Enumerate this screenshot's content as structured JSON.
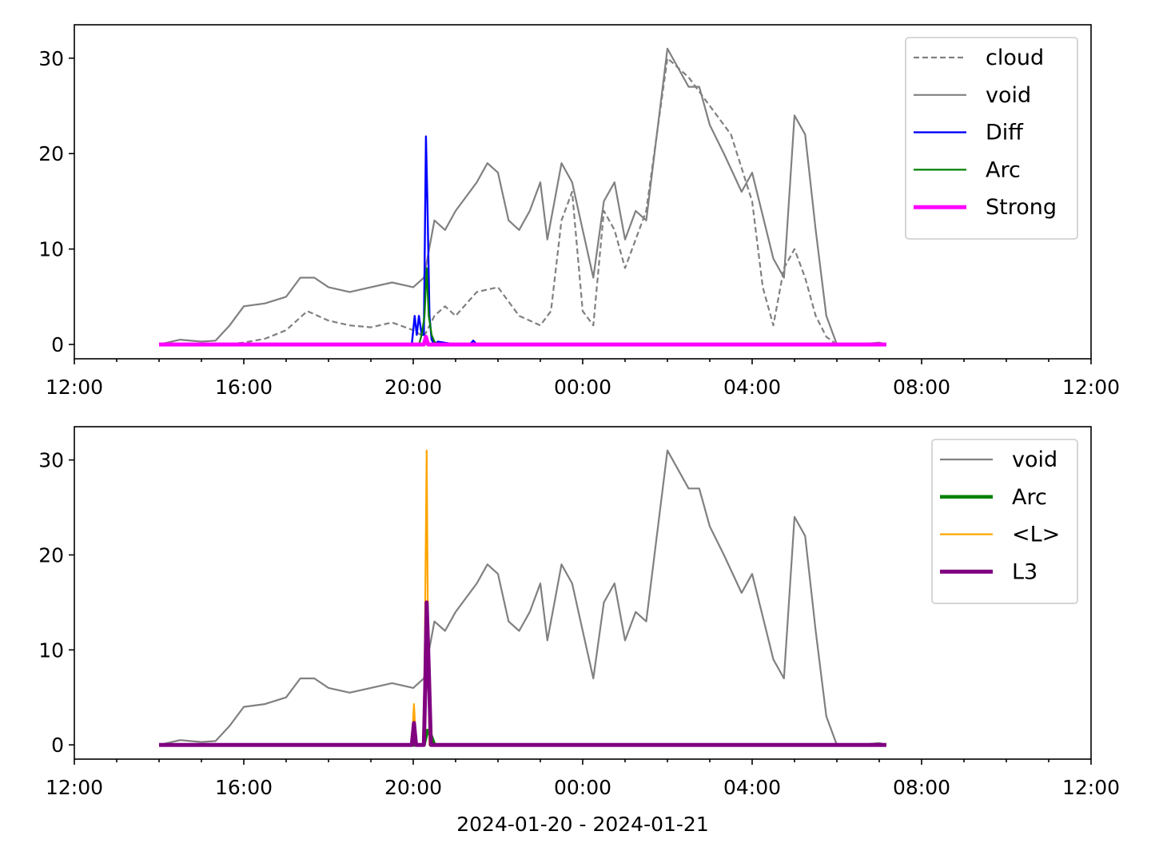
{
  "chart_data": [
    {
      "type": "line",
      "xlim": [
        "2024-01-20 12:00",
        "2024-01-21 12:00"
      ],
      "ylim": [
        -1.5,
        33.5
      ],
      "yticks": [
        0,
        10,
        20,
        30
      ],
      "xticks": [
        "12:00",
        "16:00",
        "20:00",
        "00:00",
        "04:00",
        "08:00",
        "12:00"
      ],
      "xlabel": "",
      "legend": "top-right",
      "series": [
        {
          "name": "cloud",
          "color": "#808080",
          "style": "dashed",
          "width": 2.2,
          "x": [
            "14:00",
            "15:00",
            "15:30",
            "16:00",
            "16:30",
            "17:00",
            "17:30",
            "18:00",
            "18:30",
            "19:00",
            "19:30",
            "20:00",
            "20:15",
            "20:30",
            "20:45",
            "21:00",
            "21:30",
            "22:00",
            "22:30",
            "23:00",
            "23:15",
            "23:30",
            "23:45",
            "00:00",
            "00:15",
            "00:30",
            "00:45",
            "01:00",
            "01:30",
            "02:00",
            "02:30",
            "03:00",
            "03:30",
            "04:00",
            "04:15",
            "04:30",
            "04:45",
            "05:00",
            "05:15",
            "05:30",
            "05:45",
            "06:00",
            "06:30",
            "07:00",
            "07:10"
          ],
          "y": [
            0,
            0,
            0,
            0.2,
            0.6,
            1.5,
            3.5,
            2.5,
            2,
            1.8,
            2.3,
            1.5,
            0.8,
            3.0,
            4.0,
            3.0,
            5.5,
            6.0,
            3.0,
            2.0,
            3.5,
            13,
            16,
            3.5,
            2.0,
            14,
            12,
            8,
            14,
            30,
            28,
            25,
            22,
            15,
            6,
            2,
            8,
            10,
            7,
            3,
            0.8,
            0,
            0,
            0,
            0
          ]
        },
        {
          "name": "void",
          "color": "#808080",
          "style": "solid",
          "width": 2.2,
          "x": [
            "14:00",
            "14:30",
            "15:00",
            "15:20",
            "15:40",
            "16:00",
            "16:30",
            "17:00",
            "17:20",
            "17:40",
            "18:00",
            "18:30",
            "19:00",
            "19:30",
            "20:00",
            "20:15",
            "20:30",
            "20:45",
            "21:00",
            "21:30",
            "21:45",
            "22:00",
            "22:15",
            "22:30",
            "22:45",
            "23:00",
            "23:10",
            "23:20",
            "23:30",
            "23:45",
            "00:00",
            "00:15",
            "00:30",
            "00:45",
            "01:00",
            "01:15",
            "01:30",
            "02:00",
            "02:30",
            "02:45",
            "03:00",
            "03:20",
            "03:45",
            "04:00",
            "04:20",
            "04:30",
            "04:45",
            "05:00",
            "05:15",
            "05:30",
            "05:45",
            "06:00",
            "06:30",
            "07:00",
            "07:10"
          ],
          "y": [
            0,
            0.5,
            0.3,
            0.4,
            2,
            4,
            4.3,
            5,
            7,
            7,
            6,
            5.5,
            6,
            6.5,
            6,
            7,
            13,
            12,
            14,
            17,
            19,
            18,
            13,
            12,
            14,
            17,
            11,
            15,
            19,
            17,
            12,
            7,
            15,
            17,
            11,
            14,
            13,
            31,
            27,
            27,
            23,
            20,
            16,
            18,
            12,
            9,
            7,
            24,
            22,
            12,
            3,
            0,
            0,
            0.2,
            0
          ]
        },
        {
          "name": "Diff",
          "color": "#0000ff",
          "style": "solid",
          "width": 2.4,
          "x": [
            "14:00",
            "19:58",
            "20:02",
            "20:05",
            "20:08",
            "20:12",
            "20:15",
            "20:18",
            "20:20",
            "20:23",
            "20:26",
            "20:30",
            "20:35",
            "21:00",
            "21:20",
            "21:25",
            "21:30",
            "07:10"
          ],
          "y": [
            0,
            0,
            3,
            1,
            3,
            1,
            1,
            21.8,
            15,
            3,
            0.5,
            0,
            0.3,
            0,
            0,
            0.4,
            0,
            0
          ]
        },
        {
          "name": "Arc",
          "color": "#008000",
          "style": "solid",
          "width": 2.2,
          "x": [
            "14:00",
            "20:00",
            "20:08",
            "20:12",
            "20:16",
            "20:19",
            "20:22",
            "20:26",
            "20:30",
            "20:35",
            "07:10"
          ],
          "y": [
            0,
            0,
            0,
            1,
            3,
            8,
            3,
            1,
            0.3,
            0,
            0
          ]
        },
        {
          "name": "Strong",
          "color": "#ff00ff",
          "style": "solid",
          "width": 5,
          "x": [
            "14:00",
            "20:15",
            "20:18",
            "20:21",
            "07:10"
          ],
          "y": [
            0,
            0,
            0.8,
            0,
            0
          ]
        }
      ]
    },
    {
      "type": "line",
      "xlim": [
        "2024-01-20 12:00",
        "2024-01-21 12:00"
      ],
      "ylim": [
        -1.5,
        33.5
      ],
      "yticks": [
        0,
        10,
        20,
        30
      ],
      "xticks": [
        "12:00",
        "16:00",
        "20:00",
        "00:00",
        "04:00",
        "08:00",
        "12:00"
      ],
      "xlabel": "2024-01-20 - 2024-01-21",
      "legend": "top-right",
      "series": [
        {
          "name": "void",
          "color": "#808080",
          "style": "solid",
          "width": 2.2,
          "x": [
            "14:00",
            "14:30",
            "15:00",
            "15:20",
            "15:40",
            "16:00",
            "16:30",
            "17:00",
            "17:20",
            "17:40",
            "18:00",
            "18:30",
            "19:00",
            "19:30",
            "20:00",
            "20:15",
            "20:30",
            "20:45",
            "21:00",
            "21:30",
            "21:45",
            "22:00",
            "22:15",
            "22:30",
            "22:45",
            "23:00",
            "23:10",
            "23:20",
            "23:30",
            "23:45",
            "00:00",
            "00:15",
            "00:30",
            "00:45",
            "01:00",
            "01:15",
            "01:30",
            "02:00",
            "02:30",
            "02:45",
            "03:00",
            "03:20",
            "03:45",
            "04:00",
            "04:20",
            "04:30",
            "04:45",
            "05:00",
            "05:15",
            "05:30",
            "05:45",
            "06:00",
            "06:30",
            "07:00",
            "07:10"
          ],
          "y": [
            0,
            0.5,
            0.3,
            0.4,
            2,
            4,
            4.3,
            5,
            7,
            7,
            6,
            5.5,
            6,
            6.5,
            6,
            7,
            13,
            12,
            14,
            17,
            19,
            18,
            13,
            12,
            14,
            17,
            11,
            15,
            19,
            17,
            12,
            7,
            15,
            17,
            11,
            14,
            13,
            31,
            27,
            27,
            23,
            20,
            16,
            18,
            12,
            9,
            7,
            24,
            22,
            12,
            3,
            0,
            0,
            0.2,
            0
          ]
        },
        {
          "name": "Arc",
          "color": "#008000",
          "style": "solid",
          "width": 4.5,
          "x": [
            "14:00",
            "20:15",
            "20:20",
            "20:25",
            "20:30",
            "07:10"
          ],
          "y": [
            0,
            0,
            1.5,
            1,
            0,
            0
          ]
        },
        {
          "name": "<L>",
          "color": "#ffa500",
          "style": "solid",
          "width": 2.2,
          "x": [
            "14:00",
            "19:58",
            "20:01",
            "20:04",
            "20:15",
            "20:17",
            "20:19",
            "20:21",
            "20:23",
            "20:30",
            "07:10"
          ],
          "y": [
            0,
            0,
            4.3,
            0,
            0,
            15,
            31,
            10,
            0,
            0,
            0
          ]
        },
        {
          "name": "L3",
          "color": "#800080",
          "style": "solid",
          "width": 5,
          "x": [
            "14:00",
            "19:58",
            "20:01",
            "20:04",
            "20:15",
            "20:17",
            "20:19",
            "20:22",
            "20:25",
            "20:30",
            "07:10"
          ],
          "y": [
            0,
            0,
            2.3,
            0,
            0,
            6,
            15,
            8,
            0,
            0,
            0
          ]
        }
      ]
    }
  ]
}
